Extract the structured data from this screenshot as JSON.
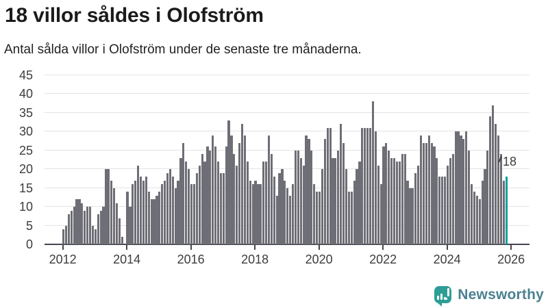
{
  "header": {
    "title": "18 villor såldes i Olofström",
    "subtitle": "Antal sålda villor i Olofström under de senaste tre månaderna."
  },
  "annotation": {
    "label": "18"
  },
  "footer": {
    "brand": "Newsworthy",
    "logo_icon": "bar-chart-speech-bubble-icon"
  },
  "colors": {
    "bar": "#6e6e76",
    "highlight": "#00a29e",
    "grid": "#e3e3e3",
    "axis": "#45454d",
    "tick_text": "#3c3c3c",
    "logo_teal": "#2e9d96",
    "logo_text": "#4b8191"
  },
  "chart_data": {
    "type": "bar",
    "title": "18 villor såldes i Olofström",
    "subtitle": "Antal sålda villor i Olofström under de senaste tre månaderna.",
    "x_start_year": 2012,
    "x_tick_labels": [
      "2012",
      "2014",
      "2016",
      "2018",
      "2020",
      "2022",
      "2024",
      "2026"
    ],
    "y_ticks": [
      0,
      5,
      10,
      15,
      20,
      25,
      30,
      35,
      40,
      45
    ],
    "ylim": [
      0,
      45
    ],
    "grid": true,
    "legend": false,
    "values": [
      4,
      5,
      8,
      9,
      10,
      12,
      12,
      11,
      9,
      10,
      10,
      5,
      4,
      8,
      9,
      10,
      20,
      20,
      17,
      15,
      11,
      7,
      2,
      0,
      14,
      10,
      16,
      17,
      21,
      18,
      17,
      18,
      14,
      12,
      12,
      13,
      14,
      16,
      17,
      19,
      20,
      18,
      15,
      17,
      23,
      27,
      22,
      20,
      16,
      16,
      19,
      21,
      24,
      22,
      26,
      25,
      29,
      26,
      22,
      19,
      19,
      26,
      33,
      29,
      24,
      21,
      27,
      32,
      29,
      22,
      17,
      16,
      17,
      16,
      16,
      22,
      22,
      29,
      24,
      18,
      13,
      19,
      20,
      17,
      15,
      13,
      16,
      25,
      25,
      23,
      21,
      29,
      28,
      25,
      16,
      14,
      14,
      20,
      28,
      31,
      31,
      23,
      23,
      25,
      32,
      27,
      20,
      14,
      14,
      17,
      20,
      22,
      31,
      31,
      31,
      31,
      38,
      30,
      21,
      16,
      26,
      27,
      25,
      23,
      23,
      22,
      22,
      24,
      24,
      17,
      15,
      15,
      19,
      21,
      29,
      27,
      27,
      29,
      27,
      26,
      23,
      18,
      18,
      18,
      21,
      23,
      24,
      30,
      30,
      29,
      28,
      30,
      25,
      16,
      14,
      13,
      12,
      17,
      20,
      25,
      34,
      37,
      32,
      29,
      24,
      17,
      18
    ],
    "highlight_index": 166,
    "highlight_value": 18
  }
}
